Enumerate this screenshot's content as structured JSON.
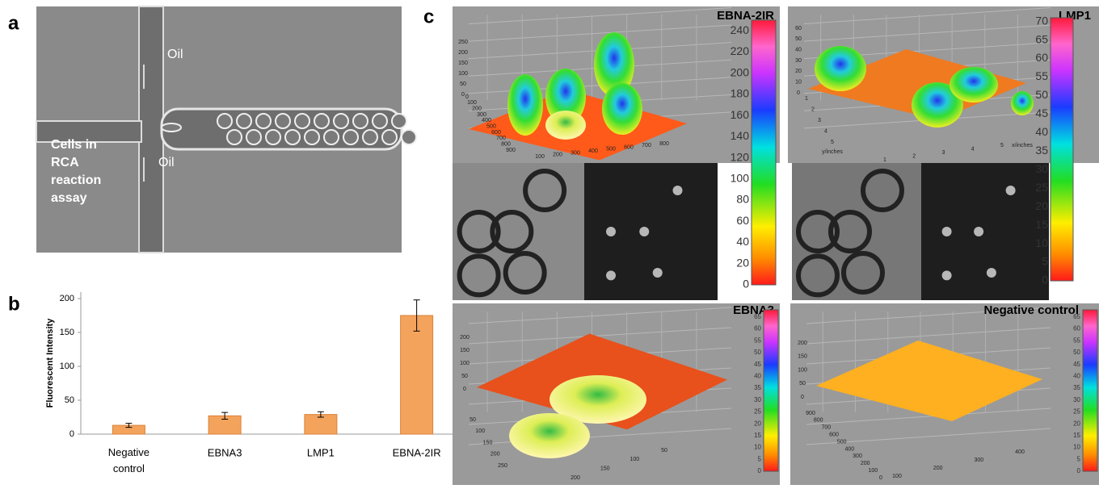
{
  "panel_labels": [
    "a",
    "b",
    "c"
  ],
  "panel_a": {
    "oil_labels": [
      "Oil",
      "Oil"
    ],
    "cell_label_lines": [
      "Cells in",
      "RCA",
      "reaction",
      "assay"
    ]
  },
  "chart_data": {
    "type": "bar",
    "y_label": "Fluorescent Intensity",
    "categories": [
      "Negative control",
      "EBNA3",
      "LMP1",
      "EBNA-2IR"
    ],
    "values": [
      13,
      27,
      29,
      175
    ],
    "errors": [
      3,
      5,
      4,
      23
    ],
    "color": "#f4a35c",
    "ylim": [
      0,
      200
    ],
    "yticks": [
      0,
      50,
      100,
      150,
      200
    ],
    "grid": false
  },
  "surface_plots": [
    {
      "title": "EBNA-2IR",
      "colorbar_lim": [
        0,
        250
      ],
      "colorbar_ticks": [
        0,
        20,
        40,
        60,
        80,
        100,
        120,
        140,
        160,
        180,
        200,
        220,
        240
      ],
      "z_ticks": [
        0,
        50,
        100,
        150,
        200,
        250
      ],
      "y_ticks": [
        0,
        100,
        200,
        300,
        400,
        500,
        600,
        700,
        800,
        900
      ],
      "x_ticks": [
        100,
        200,
        300,
        400,
        500,
        600,
        700,
        800
      ]
    },
    {
      "title": "LMP1",
      "colorbar_lim": [
        0,
        71
      ],
      "colorbar_ticks": [
        0,
        5,
        10,
        15,
        20,
        25,
        30,
        35,
        40,
        45,
        50,
        55,
        60,
        65,
        70
      ],
      "z_ticks": [
        0,
        10,
        20,
        30,
        40,
        50,
        60
      ],
      "y_ticks": [
        1,
        2,
        3,
        4,
        5
      ],
      "x_ticks": [
        1,
        2,
        3,
        4,
        5
      ],
      "axis_labels": [
        "y/inches",
        "x/inches"
      ]
    },
    {
      "title": "EBNA3",
      "colorbar_lim": [
        0,
        68
      ],
      "colorbar_ticks": [
        0,
        5,
        10,
        15,
        20,
        25,
        30,
        35,
        40,
        45,
        50,
        55,
        60,
        65
      ],
      "z_ticks": [
        0,
        50,
        100,
        150,
        200
      ],
      "y_ticks": [
        50,
        100,
        150,
        200,
        250
      ],
      "x_ticks": [
        200,
        150,
        100,
        50
      ]
    },
    {
      "title": "Negative control",
      "colorbar_lim": [
        0,
        68
      ],
      "colorbar_ticks": [
        0,
        5,
        10,
        15,
        20,
        25,
        30,
        35,
        40,
        45,
        50,
        55,
        60,
        65
      ],
      "z_ticks": [
        0,
        50,
        100,
        150,
        200
      ],
      "y_ticks": [
        900,
        800,
        700,
        600,
        500,
        400,
        300,
        200,
        100,
        0
      ],
      "x_ticks": [
        100,
        200,
        300,
        400
      ]
    }
  ]
}
